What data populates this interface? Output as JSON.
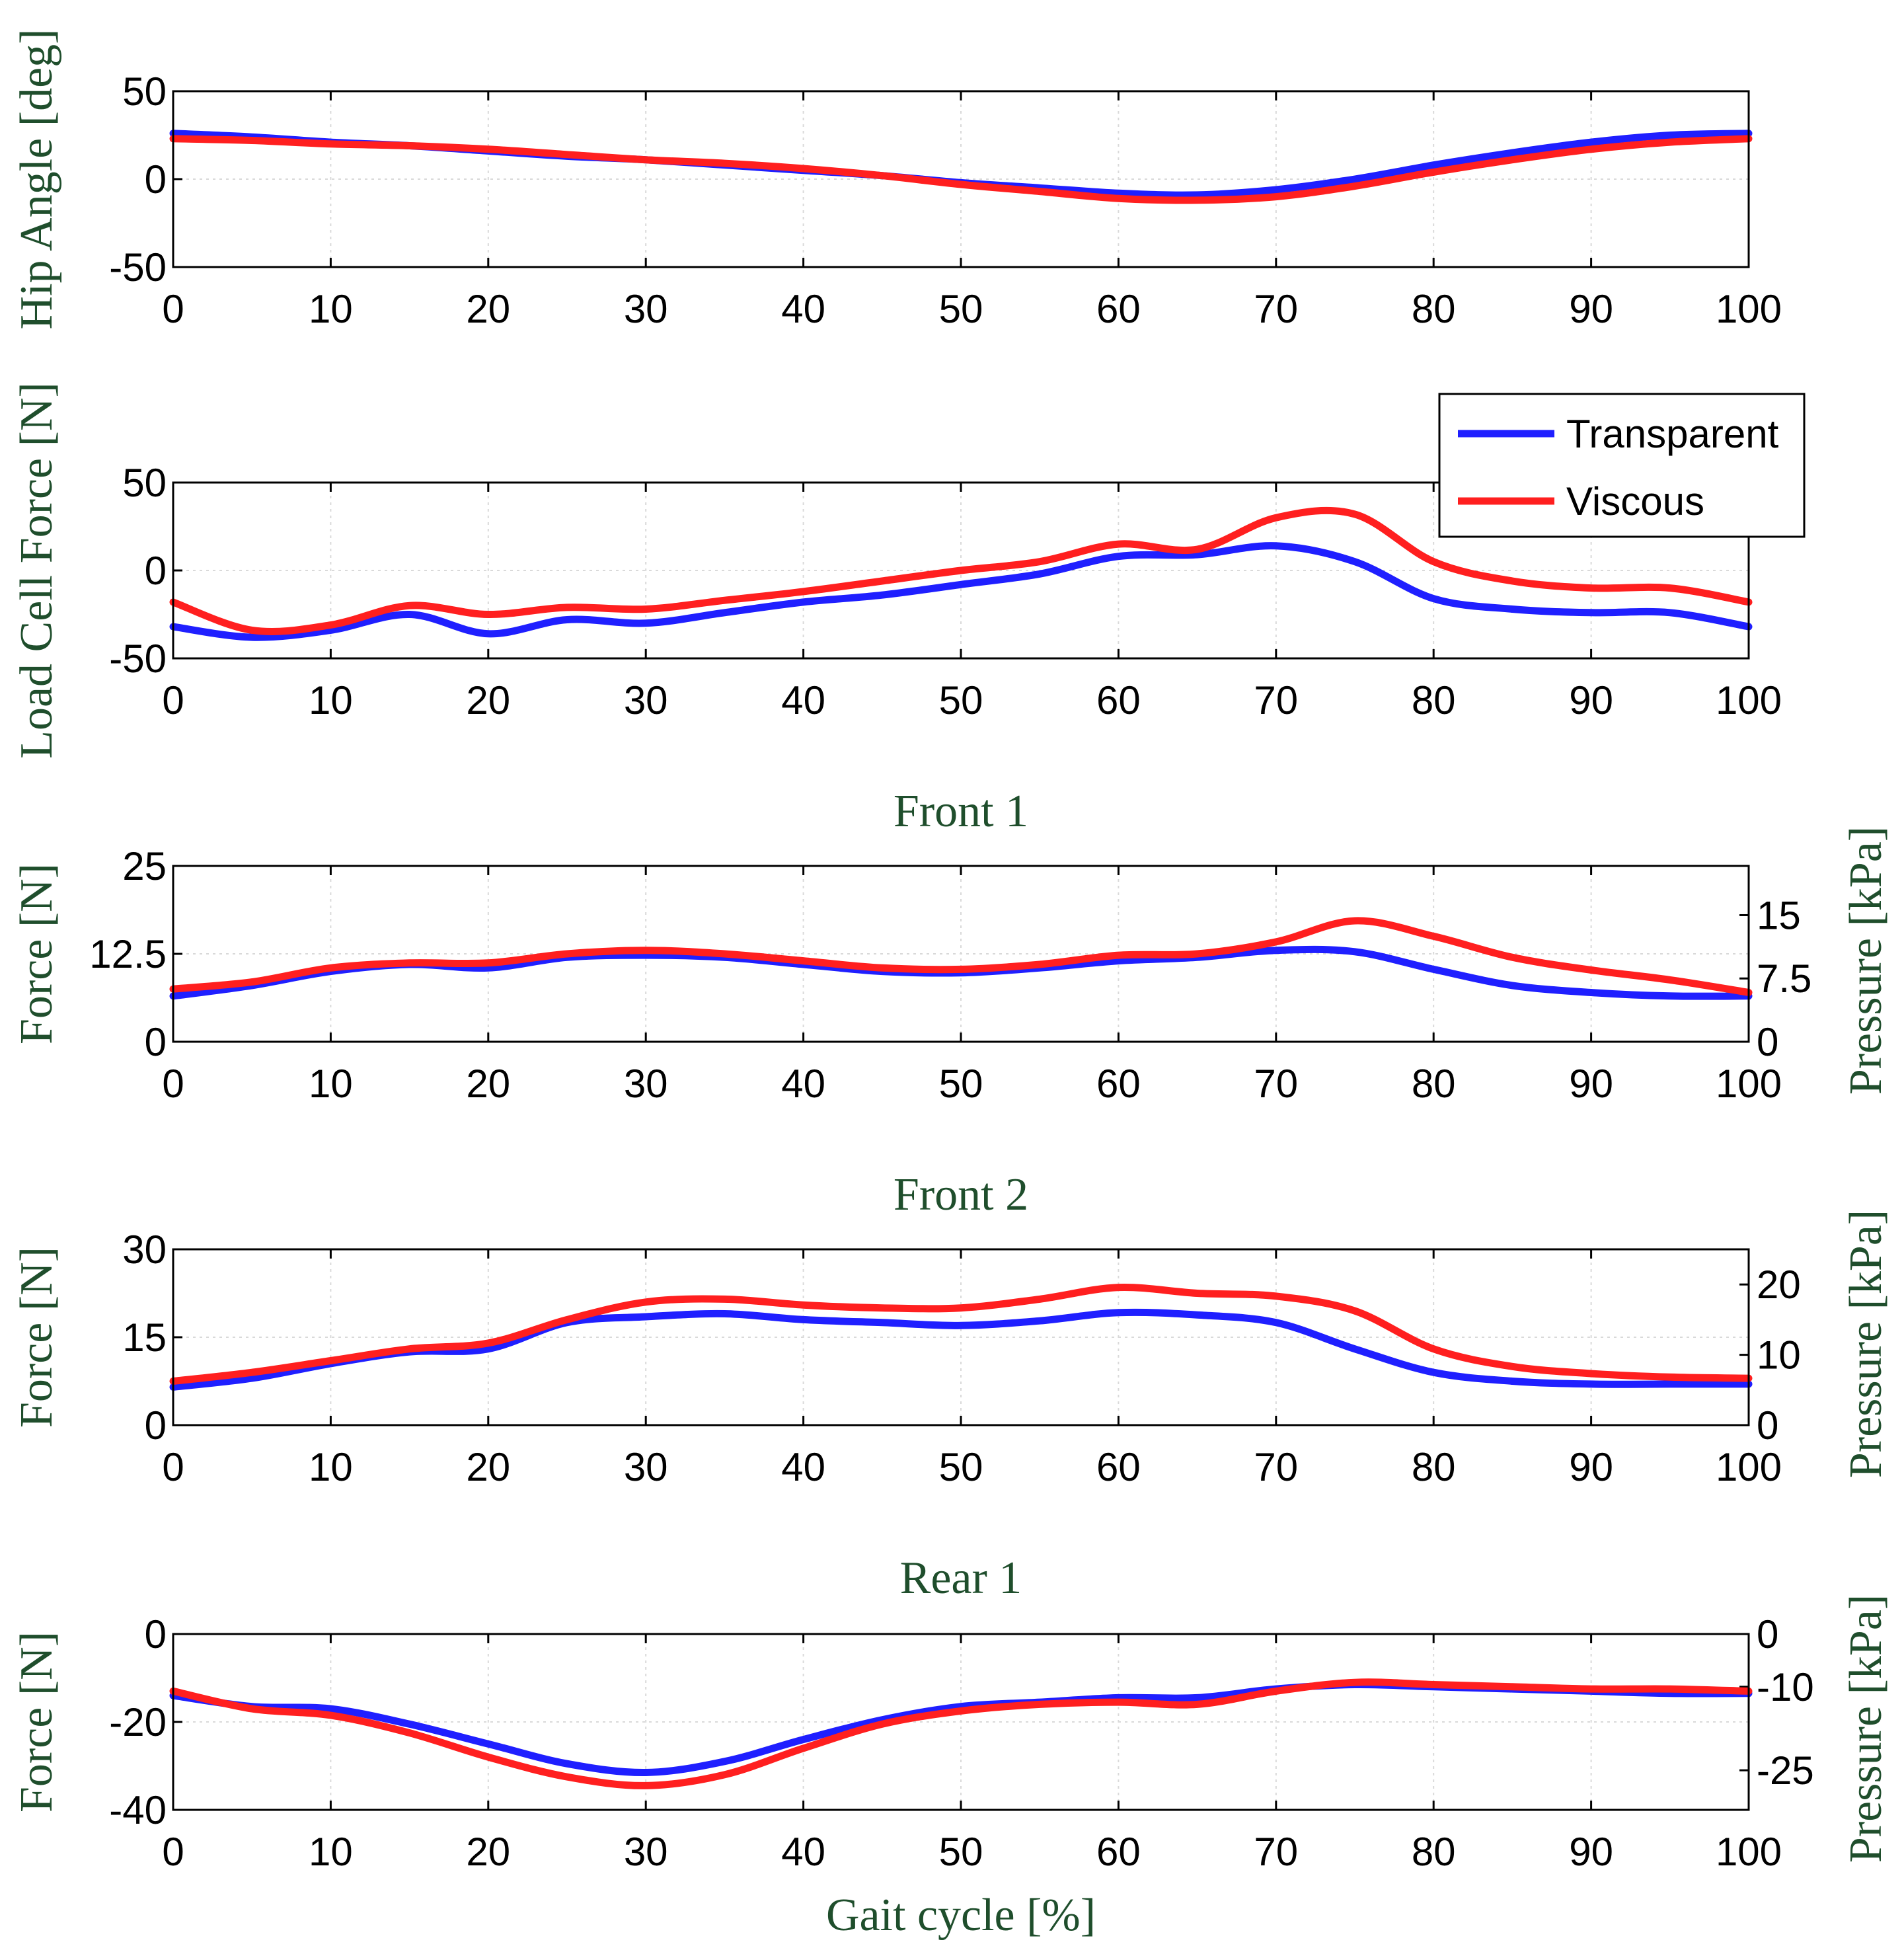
{
  "colors": {
    "transparent": "#1f1fff",
    "viscous": "#ff1f1f",
    "label": "#1f4e2c",
    "grid": "#d9d9d9"
  },
  "legend": {
    "items": [
      {
        "label": "Transparent",
        "key": "transparent"
      },
      {
        "label": "Viscous",
        "key": "viscous"
      }
    ],
    "placement": "top-right of panel 2"
  },
  "x_label": "Gait cycle [%]",
  "chart_data": [
    {
      "type": "line",
      "title": "",
      "ylabel": "Hip Angle [deg]",
      "xlabel": "",
      "xlim": [
        0,
        100
      ],
      "ylim": [
        -50,
        50
      ],
      "xticks": [
        "0",
        "10",
        "20",
        "30",
        "40",
        "50",
        "60",
        "70",
        "80",
        "90",
        "100"
      ],
      "yticks": [
        {
          "v": -50,
          "label": "-50"
        },
        {
          "v": 0,
          "label": "0"
        },
        {
          "v": 50,
          "label": "50"
        }
      ],
      "x": [
        0,
        5,
        10,
        15,
        20,
        25,
        30,
        35,
        40,
        45,
        50,
        55,
        60,
        65,
        70,
        75,
        80,
        85,
        90,
        95,
        100
      ],
      "series": [
        {
          "name": "Transparent",
          "values": [
            26,
            24,
            21,
            19,
            16,
            13,
            11,
            8,
            5,
            2,
            -2,
            -5,
            -8,
            -9,
            -6,
            0,
            8,
            15,
            21,
            25,
            26
          ]
        },
        {
          "name": "Viscous",
          "values": [
            23,
            22,
            20,
            19,
            17,
            14,
            11,
            9,
            6,
            2,
            -3,
            -7,
            -11,
            -12,
            -10,
            -4,
            4,
            11,
            17,
            21,
            23
          ]
        }
      ]
    },
    {
      "type": "line",
      "title": "",
      "ylabel": "Load Cell Force [N]",
      "xlabel": "",
      "xlim": [
        0,
        100
      ],
      "ylim": [
        -50,
        50
      ],
      "xticks": [
        "0",
        "10",
        "20",
        "30",
        "40",
        "50",
        "60",
        "70",
        "80",
        "90",
        "100"
      ],
      "yticks": [
        {
          "v": -50,
          "label": "-50"
        },
        {
          "v": 0,
          "label": "0"
        },
        {
          "v": 50,
          "label": "50"
        }
      ],
      "x": [
        0,
        5,
        10,
        15,
        20,
        25,
        30,
        35,
        40,
        45,
        50,
        55,
        60,
        65,
        70,
        75,
        80,
        85,
        90,
        95,
        100
      ],
      "series": [
        {
          "name": "Transparent",
          "values": [
            -32,
            -38,
            -34,
            -25,
            -36,
            -28,
            -30,
            -24,
            -18,
            -14,
            -8,
            -2,
            8,
            9,
            14,
            5,
            -16,
            -22,
            -24,
            -24,
            -32
          ]
        },
        {
          "name": "Viscous",
          "values": [
            -18,
            -34,
            -31,
            -20,
            -25,
            -21,
            -22,
            -17,
            -12,
            -6,
            0,
            5,
            15,
            12,
            30,
            32,
            5,
            -6,
            -10,
            -10,
            -18
          ]
        }
      ]
    },
    {
      "type": "line",
      "title": "Front 1",
      "ylabel": "Force [N]",
      "ylabel_right": "Pressure [kPa]",
      "xlabel": "",
      "xlim": [
        0,
        100
      ],
      "ylim": [
        0,
        25
      ],
      "xticks": [
        "0",
        "10",
        "20",
        "30",
        "40",
        "50",
        "60",
        "70",
        "80",
        "90",
        "100"
      ],
      "yticks": [
        {
          "v": 0,
          "label": "0"
        },
        {
          "v": 12.5,
          "label": "12.5"
        },
        {
          "v": 25,
          "label": "25"
        }
      ],
      "yticks_right": [
        {
          "v": 0,
          "label": "0"
        },
        {
          "v": 9,
          "label": "7.5"
        },
        {
          "v": 18,
          "label": "15"
        }
      ],
      "x": [
        0,
        5,
        10,
        15,
        20,
        25,
        30,
        35,
        40,
        45,
        50,
        55,
        60,
        65,
        70,
        75,
        80,
        85,
        90,
        95,
        100
      ],
      "series": [
        {
          "name": "Transparent",
          "values": [
            6.5,
            8,
            10,
            11,
            10.5,
            12,
            12.3,
            12,
            11,
            10,
            9.8,
            10.5,
            11.5,
            12,
            13,
            12.8,
            10.3,
            8,
            7,
            6.5,
            6.5
          ]
        },
        {
          "name": "Viscous",
          "values": [
            7.5,
            8.5,
            10.5,
            11.2,
            11.2,
            12.5,
            13,
            12.5,
            11.5,
            10.5,
            10.3,
            11,
            12.3,
            12.5,
            14.2,
            17.2,
            15,
            12,
            10.2,
            8.8,
            7
          ]
        }
      ]
    },
    {
      "type": "line",
      "title": "Front 2",
      "ylabel": "Force [N]",
      "ylabel_right": "Pressure [kPa]",
      "xlabel": "",
      "xlim": [
        0,
        100
      ],
      "ylim": [
        0,
        30
      ],
      "xticks": [
        "0",
        "10",
        "20",
        "30",
        "40",
        "50",
        "60",
        "70",
        "80",
        "90",
        "100"
      ],
      "yticks": [
        {
          "v": 0,
          "label": "0"
        },
        {
          "v": 15,
          "label": "15"
        },
        {
          "v": 30,
          "label": "30"
        }
      ],
      "yticks_right": [
        {
          "v": 0,
          "label": "0"
        },
        {
          "v": 12,
          "label": "10"
        },
        {
          "v": 24,
          "label": "20"
        }
      ],
      "x": [
        0,
        5,
        10,
        15,
        20,
        25,
        30,
        35,
        40,
        45,
        50,
        55,
        60,
        65,
        70,
        75,
        80,
        85,
        90,
        95,
        100
      ],
      "series": [
        {
          "name": "Transparent",
          "values": [
            6.5,
            8,
            10.5,
            12.5,
            13,
            17.5,
            18.5,
            19,
            18,
            17.5,
            17,
            17.8,
            19.2,
            18.8,
            17.5,
            13,
            9,
            7.5,
            7,
            7,
            7
          ]
        },
        {
          "name": "Viscous",
          "values": [
            7.5,
            9,
            11,
            13,
            14,
            18,
            21,
            21.5,
            20.5,
            20,
            20,
            21.5,
            23.5,
            22.5,
            22,
            19.5,
            13,
            10,
            8.8,
            8.2,
            8
          ]
        }
      ]
    },
    {
      "type": "line",
      "title": "Rear 1",
      "ylabel": "Force [N]",
      "ylabel_right": "Pressure [kPa]",
      "xlabel": "Gait cycle [%]",
      "xlim": [
        0,
        100
      ],
      "ylim": [
        -40,
        0
      ],
      "xticks": [
        "0",
        "10",
        "20",
        "30",
        "40",
        "50",
        "60",
        "70",
        "80",
        "90",
        "100"
      ],
      "yticks": [
        {
          "v": -40,
          "label": "-40"
        },
        {
          "v": -20,
          "label": "-20"
        },
        {
          "v": 0,
          "label": "0"
        }
      ],
      "yticks_right": [
        {
          "v": 0,
          "label": "0"
        },
        {
          "v": -12,
          "label": "-10"
        },
        {
          "v": -31,
          "label": "-25"
        }
      ],
      "x": [
        0,
        5,
        10,
        15,
        20,
        25,
        30,
        35,
        40,
        45,
        50,
        55,
        60,
        65,
        70,
        75,
        80,
        85,
        90,
        95,
        100
      ],
      "series": [
        {
          "name": "Transparent",
          "values": [
            -14,
            -16.5,
            -17,
            -20.5,
            -25,
            -29.5,
            -31.5,
            -29,
            -24,
            -19.5,
            -16.5,
            -15.5,
            -14.5,
            -14.5,
            -12.5,
            -11.5,
            -12,
            -12.5,
            -13,
            -13.5,
            -13.5
          ]
        },
        {
          "name": "Viscous",
          "values": [
            -13,
            -17,
            -18.5,
            -22.5,
            -28,
            -32.5,
            -34.5,
            -32,
            -26,
            -20.5,
            -17.5,
            -16,
            -15.5,
            -16,
            -13,
            -11,
            -11.5,
            -12,
            -12.5,
            -12.5,
            -13
          ]
        }
      ]
    }
  ]
}
